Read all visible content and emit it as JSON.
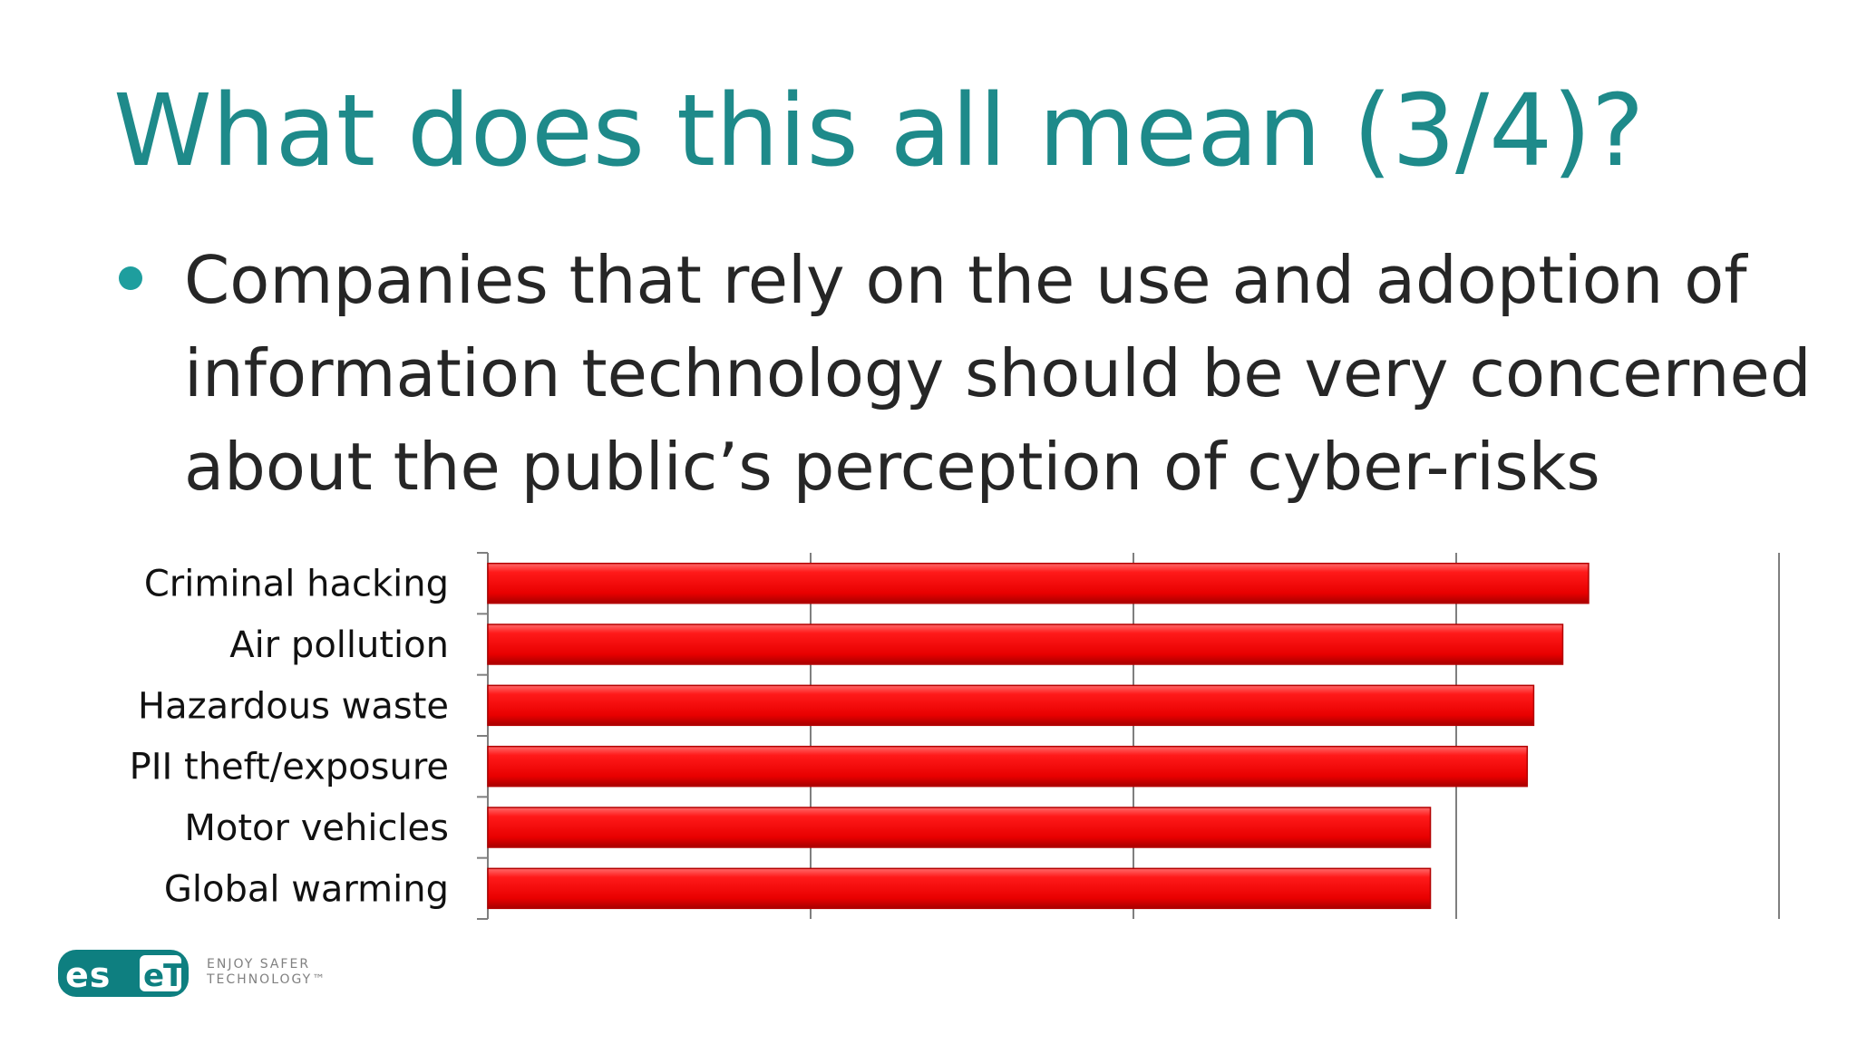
{
  "slide": {
    "title": "What does this all mean (3/4)?",
    "bullet": "Companies that rely on the use and adoption of information technology should be very concerned about the public’s perception of cyber-risks"
  },
  "chart_data": {
    "type": "bar",
    "orientation": "horizontal",
    "categories": [
      "Criminal hacking",
      "Air pollution",
      "Hazardous waste",
      "PII theft/exposure",
      "Motor vehicles",
      "Global warming"
    ],
    "values": [
      3.41,
      3.33,
      3.24,
      3.22,
      2.92,
      2.92
    ],
    "xlim": [
      0,
      4
    ],
    "grid": true,
    "legend": "none",
    "bar_color": "#ee1111",
    "title": "",
    "xlabel": "",
    "ylabel": ""
  },
  "footer": {
    "logo_text": "eset",
    "tagline": "ENJOY SAFER\nTECHNOLOGY™"
  }
}
